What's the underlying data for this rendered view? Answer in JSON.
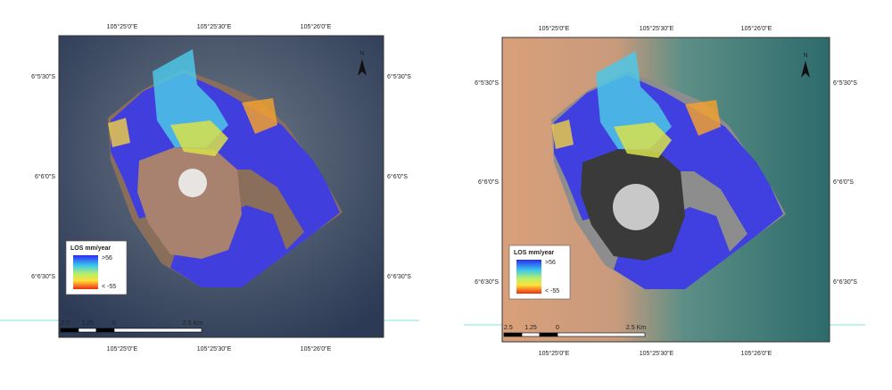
{
  "panels": [
    {
      "top_labels": [
        "105°25'0\"E",
        "105°25'30\"E",
        "105°26'0\"E"
      ],
      "left_labels": [
        "6°5'30\"S",
        "6°6'0\"S",
        "6°6'30\"S"
      ],
      "right_labels": [
        "6°5'30\"S",
        "6°6'0\"S",
        "6°6'30\"S"
      ],
      "bottom_labels": [
        "105°25'0\"E",
        "105°25'30\"E",
        "105°26'0\"E"
      ],
      "legend": {
        "title": "LOS mm/year",
        "high": ">56",
        "low": "< -55"
      },
      "scale": [
        "2.5",
        "1.25",
        "0",
        "2.5 Km"
      ],
      "north": "N"
    },
    {
      "top_labels": [
        "105°25'0\"E",
        "105°25'30\"E",
        "105°26'0\"E"
      ],
      "left_labels": [
        "6°5'30\"S",
        "6°6'0\"S",
        "6°6'30\"S"
      ],
      "right_labels": [
        "6°5'30\"S",
        "6°6'0\"S",
        "6°6'30\"S"
      ],
      "bottom_labels": [
        "105°25'0\"E",
        "105°25'30\"E",
        "105°26'0\"E"
      ],
      "legend": {
        "title": "LOS mm/year",
        "high": ">56",
        "low": "< -55"
      },
      "scale": [
        "2.5",
        "1.25",
        "0",
        "2.5 Km"
      ],
      "north": "N"
    }
  ]
}
